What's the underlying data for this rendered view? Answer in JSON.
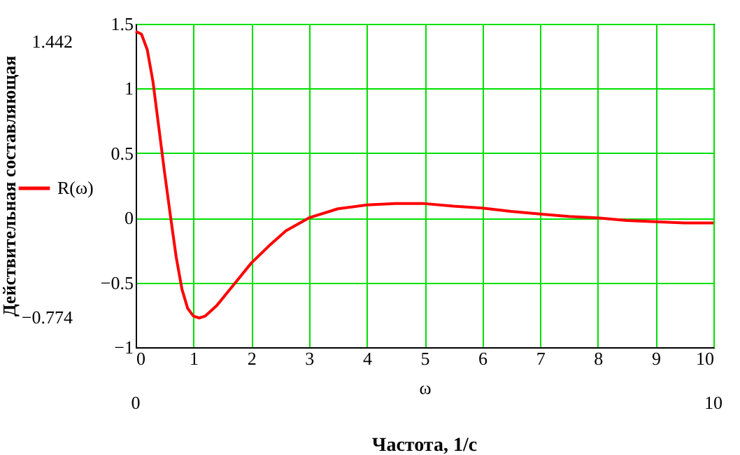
{
  "chart_data": {
    "type": "line",
    "xlabel": "ω",
    "ylabel": "Действительная составляющая",
    "x": [
      0,
      0.1,
      0.2,
      0.3,
      0.4,
      0.5,
      0.6,
      0.7,
      0.8,
      0.9,
      1.0,
      1.1,
      1.2,
      1.4,
      1.6,
      1.8,
      2.0,
      2.3,
      2.6,
      3.0,
      3.5,
      4.0,
      4.5,
      5.0,
      5.5,
      6.0,
      6.5,
      7.0,
      7.5,
      8.0,
      8.5,
      9.0,
      9.5,
      10.0
    ],
    "series": [
      {
        "name": "R(ω)",
        "color": "#ff0000",
        "values": [
          1.442,
          1.42,
          1.3,
          1.05,
          0.7,
          0.35,
          0.02,
          -0.3,
          -0.55,
          -0.7,
          -0.76,
          -0.774,
          -0.76,
          -0.68,
          -0.57,
          -0.46,
          -0.35,
          -0.22,
          -0.1,
          0.0,
          0.07,
          0.1,
          0.11,
          0.11,
          0.09,
          0.075,
          0.05,
          0.03,
          0.01,
          0.0,
          -0.02,
          -0.03,
          -0.04,
          -0.04
        ]
      }
    ],
    "xlim": [
      0,
      10
    ],
    "xticks": [
      0,
      1,
      2,
      3,
      4,
      5,
      6,
      7,
      8,
      9,
      10
    ],
    "ylim": [
      -1,
      1.5
    ],
    "yticks": [
      -1,
      -0.5,
      0,
      0.5,
      1,
      1.5
    ],
    "grid": true,
    "legend": "left",
    "marker": "none",
    "line_style": "solid",
    "annotations": [
      "1.442",
      "−0.774",
      "0",
      "10",
      "Частота, 1/с"
    ]
  }
}
